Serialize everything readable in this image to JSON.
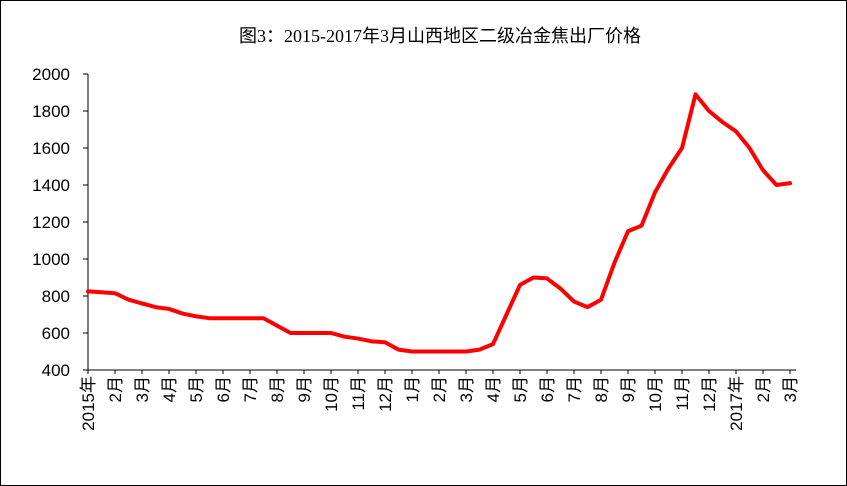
{
  "chart_data": {
    "type": "line",
    "title": "图3：2015-2017年3月山西地区二级冶金焦出厂价格",
    "categories": [
      "2015年",
      null,
      "2月",
      null,
      "3月",
      null,
      "4月",
      null,
      "5月",
      null,
      "6月",
      null,
      "7月",
      null,
      "8月",
      null,
      "9月",
      null,
      "10月",
      null,
      "11月",
      null,
      "12月",
      null,
      "1月",
      null,
      "2月",
      null,
      "3月",
      null,
      "4月",
      null,
      "5月",
      null,
      "6月",
      null,
      "7月",
      null,
      "8月",
      null,
      "9月",
      null,
      "10月",
      null,
      "11月",
      null,
      "12月",
      null,
      "2017年",
      null,
      "2月",
      null,
      "3月"
    ],
    "series": [
      {
        "color": "#ff0000",
        "values": [
          825,
          820,
          815,
          780,
          760,
          740,
          730,
          705,
          690,
          680,
          680,
          680,
          680,
          680,
          640,
          600,
          600,
          600,
          600,
          580,
          570,
          555,
          550,
          510,
          500,
          500,
          500,
          500,
          500,
          510,
          540,
          700,
          860,
          900,
          895,
          840,
          770,
          740,
          780,
          980,
          1150,
          1180,
          1360,
          1490,
          1600,
          1890,
          1800,
          1740,
          1690,
          1600,
          1480,
          1400,
          1410
        ]
      }
    ],
    "ylim": [
      400,
      2000
    ],
    "yticks": [
      400,
      600,
      800,
      1000,
      1200,
      1400,
      1600,
      1800,
      2000
    ],
    "grid": false
  }
}
